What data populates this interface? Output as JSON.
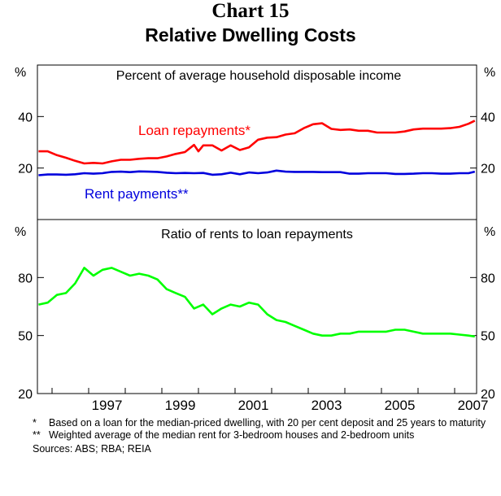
{
  "header": {
    "chart_number": "Chart 15",
    "title": "Relative Dwelling Costs"
  },
  "colors": {
    "loan": "#ff0000",
    "rent": "#0000dd",
    "ratio": "#00ff00",
    "axis": "#000000"
  },
  "x_axis": {
    "tick_labels": [
      "1997",
      "1999",
      "2001",
      "2003",
      "2005",
      "2007"
    ]
  },
  "chart_data": [
    {
      "type": "line",
      "title": "Percent of average household disposable income",
      "unit_left": "%",
      "unit_right": "%",
      "xlim": [
        1995.6,
        2007.6
      ],
      "ylim": [
        0,
        60
      ],
      "y_ticks": [
        40,
        20
      ],
      "y_tick_labels": [
        "40",
        "20"
      ],
      "grid": false,
      "series": [
        {
          "name": "Loan repayments*",
          "color": "#ff0000",
          "x": [
            1995.63,
            1995.88,
            1996.13,
            1996.38,
            1996.63,
            1996.88,
            1997.13,
            1997.38,
            1997.63,
            1997.88,
            1998.13,
            1998.38,
            1998.63,
            1998.88,
            1999.13,
            1999.38,
            1999.63,
            1999.88,
            2000.0,
            2000.13,
            2000.38,
            2000.63,
            2000.88,
            2001.13,
            2001.38,
            2001.63,
            2001.88,
            2002.13,
            2002.38,
            2002.63,
            2002.88,
            2003.13,
            2003.38,
            2003.63,
            2003.88,
            2004.13,
            2004.38,
            2004.63,
            2004.88,
            2005.13,
            2005.38,
            2005.63,
            2005.88,
            2006.13,
            2006.38,
            2006.63,
            2006.88,
            2007.13,
            2007.38,
            2007.55
          ],
          "y": [
            26.5,
            26.5,
            25.0,
            24.0,
            22.8,
            21.8,
            22.0,
            21.8,
            22.6,
            23.2,
            23.2,
            23.6,
            23.8,
            23.8,
            24.5,
            25.5,
            26.2,
            29.0,
            26.5,
            28.8,
            28.8,
            26.8,
            28.8,
            27.0,
            28.0,
            31.0,
            31.8,
            32.0,
            33.0,
            33.5,
            35.5,
            37.0,
            37.4,
            35.2,
            34.8,
            35.0,
            34.5,
            34.5,
            33.8,
            33.8,
            33.8,
            34.2,
            35.0,
            35.3,
            35.3,
            35.3,
            35.5,
            36.0,
            37.2,
            38.4
          ]
        },
        {
          "name": "Rent payments**",
          "color": "#0000dd",
          "x": [
            1995.63,
            1995.88,
            1996.13,
            1996.38,
            1996.63,
            1996.88,
            1997.13,
            1997.38,
            1997.63,
            1997.88,
            1998.13,
            1998.38,
            1998.63,
            1998.88,
            1999.13,
            1999.38,
            1999.63,
            1999.88,
            2000.13,
            2000.38,
            2000.63,
            2000.88,
            2001.13,
            2001.38,
            2001.63,
            2001.88,
            2002.13,
            2002.38,
            2002.63,
            2002.88,
            2003.13,
            2003.38,
            2003.63,
            2003.88,
            2004.13,
            2004.38,
            2004.63,
            2004.88,
            2005.13,
            2005.38,
            2005.63,
            2005.88,
            2006.13,
            2006.38,
            2006.63,
            2006.88,
            2007.13,
            2007.38,
            2007.55
          ],
          "y": [
            17.2,
            17.5,
            17.5,
            17.4,
            17.6,
            18.0,
            17.8,
            18.0,
            18.5,
            18.6,
            18.4,
            18.7,
            18.6,
            18.5,
            18.2,
            18.0,
            18.1,
            18.0,
            18.1,
            17.4,
            17.6,
            18.2,
            17.6,
            18.3,
            18.0,
            18.3,
            19.0,
            18.6,
            18.5,
            18.5,
            18.5,
            18.4,
            18.4,
            18.4,
            17.8,
            17.8,
            18.0,
            18.0,
            18.0,
            17.7,
            17.7,
            17.8,
            18.0,
            18.0,
            17.8,
            17.8,
            18.0,
            18.0,
            18.6
          ]
        }
      ],
      "annotations": [
        "Loan repayments*",
        "Rent payments**"
      ]
    },
    {
      "type": "line",
      "title": "Ratio of rents to loan repayments",
      "unit_left": "%",
      "unit_right": "%",
      "xlim": [
        1995.6,
        2007.6
      ],
      "ylim": [
        20,
        110
      ],
      "y_ticks": [
        80,
        50,
        20
      ],
      "y_tick_labels": [
        "80",
        "50",
        "20"
      ],
      "grid": false,
      "series": [
        {
          "name": "Ratio of rents to loan repayments",
          "color": "#00ff00",
          "x": [
            1995.63,
            1995.88,
            1996.13,
            1996.38,
            1996.63,
            1996.88,
            1997.13,
            1997.38,
            1997.63,
            1997.88,
            1998.13,
            1998.38,
            1998.63,
            1998.88,
            1999.13,
            1999.38,
            1999.63,
            1999.88,
            2000.13,
            2000.38,
            2000.63,
            2000.88,
            2001.13,
            2001.38,
            2001.63,
            2001.88,
            2002.13,
            2002.38,
            2002.63,
            2002.88,
            2003.13,
            2003.38,
            2003.63,
            2003.88,
            2004.13,
            2004.38,
            2004.63,
            2004.88,
            2005.13,
            2005.38,
            2005.63,
            2005.88,
            2006.13,
            2006.38,
            2006.63,
            2006.88,
            2007.13,
            2007.38,
            2007.55
          ],
          "y": [
            66,
            67,
            71,
            72,
            77,
            85,
            81,
            84,
            85,
            83,
            81,
            82,
            81,
            79,
            74,
            72,
            70,
            64,
            66,
            61,
            64,
            66,
            65,
            67,
            66,
            61,
            58,
            57,
            55,
            53,
            51,
            50,
            50,
            51,
            51,
            52,
            52,
            52,
            52,
            53,
            53,
            52,
            51,
            51,
            51,
            51,
            50.5,
            50,
            49.5
          ]
        }
      ]
    }
  ],
  "footnotes": [
    {
      "mark": "*",
      "text": "Based on a loan for the median-priced dwelling, with 20 per cent deposit and 25 years to maturity"
    },
    {
      "mark": "**",
      "text": "Weighted average of the median rent for 3-bedroom houses and 2-bedroom units"
    }
  ],
  "sources": "Sources: ABS; RBA; REIA"
}
